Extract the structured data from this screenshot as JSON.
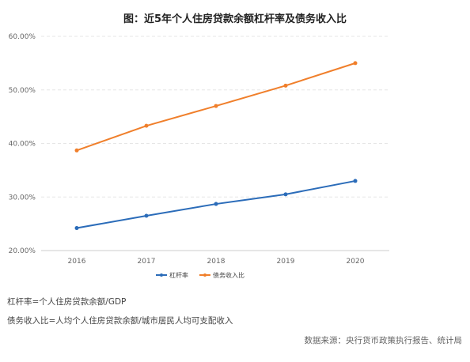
{
  "chart_data": {
    "type": "line",
    "title": "图：近5年个人住房贷款余额杠杆率及债务收入比",
    "categories": [
      "2016",
      "2017",
      "2018",
      "2019",
      "2020"
    ],
    "y_ticks": [
      "20.00%",
      "30.00%",
      "40.00%",
      "50.00%",
      "60.00%"
    ],
    "ylim": [
      20,
      60
    ],
    "grid": "horizontal dashed",
    "legend_position": "bottom-center",
    "series": [
      {
        "name": "杠杆率",
        "color": "#2b6cb9",
        "values": [
          24.2,
          26.5,
          28.7,
          30.5,
          33.0
        ]
      },
      {
        "name": "债务收入比",
        "color": "#f07f2b",
        "values": [
          38.7,
          43.3,
          47.0,
          50.8,
          55.0
        ]
      }
    ]
  },
  "notes": {
    "leverage_definition": "杠杆率=个人住房贷款余额/GDP",
    "debt_income_definition": "债务收入比=人均个人住房贷款余额/城市居民人均可支配收入",
    "source": "数据来源：央行货币政策执行报告、统计局"
  }
}
